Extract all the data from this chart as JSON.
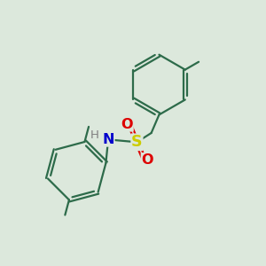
{
  "bg_color": "#dce8dc",
  "bond_color": "#2d6b4a",
  "bond_width": 1.6,
  "S_color": "#cccc00",
  "O_color": "#dd0000",
  "N_color": "#0000cc",
  "H_color": "#808080",
  "figsize": [
    3.0,
    3.0
  ],
  "dpi": 100,
  "xlim": [
    0,
    10
  ],
  "ylim": [
    0,
    10
  ]
}
